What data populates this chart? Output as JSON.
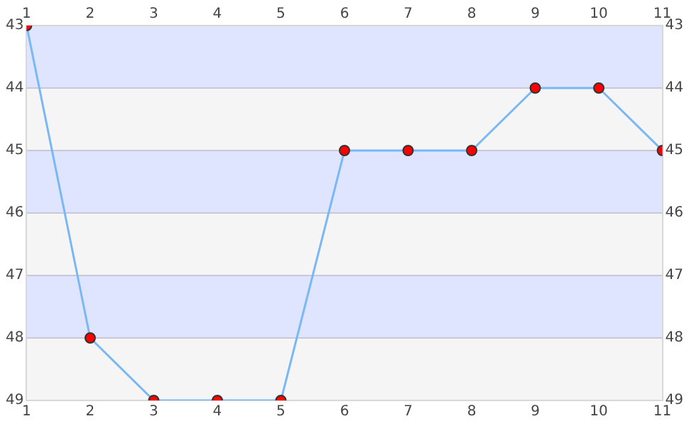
{
  "chart_data": {
    "type": "line",
    "x": [
      1,
      2,
      3,
      4,
      5,
      6,
      7,
      8,
      9,
      10,
      11
    ],
    "series": [
      {
        "color": "#7ab8f5",
        "values": [
          43,
          48,
          49,
          49,
          49,
          45,
          45,
          45,
          44,
          44,
          45
        ]
      }
    ],
    "xlim": [
      1,
      11
    ],
    "xticks": [
      1,
      2,
      3,
      4,
      5,
      6,
      7,
      8,
      9,
      10,
      11
    ],
    "x2lim": [
      1,
      11
    ],
    "x2ticks": [
      1,
      2,
      3,
      4,
      5,
      6,
      7,
      8,
      9,
      10,
      11
    ],
    "ylim": [
      49,
      43
    ],
    "yticks": [
      43,
      44,
      45,
      46,
      47,
      48,
      49
    ],
    "y2lim": [
      49,
      43
    ],
    "y2ticks": [
      43,
      44,
      45,
      46,
      47,
      48,
      49
    ],
    "grid": "y",
    "legend": false,
    "marker": "circle",
    "line_style": "solid"
  }
}
